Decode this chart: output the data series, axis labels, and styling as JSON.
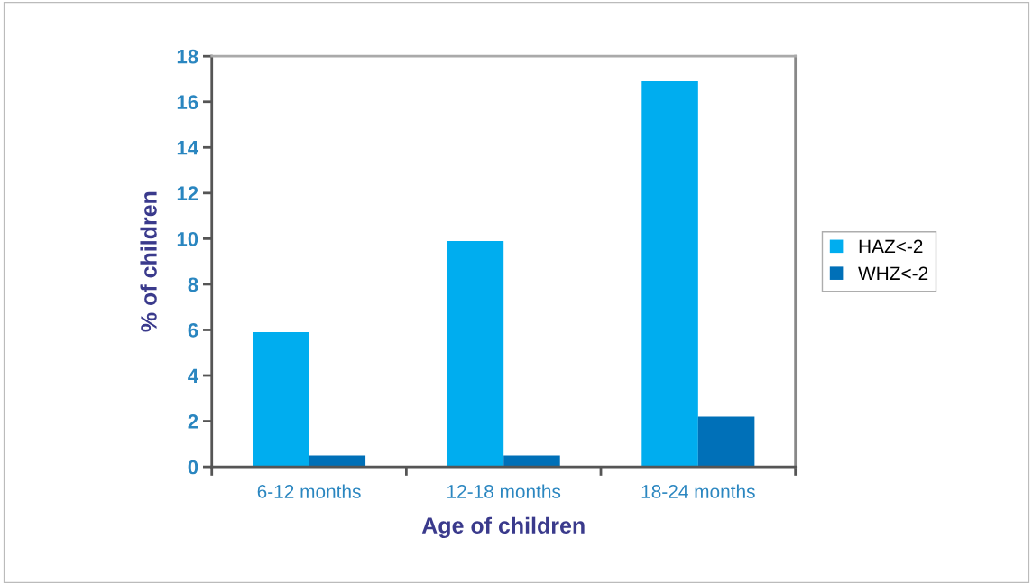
{
  "chart_data": {
    "type": "bar",
    "xlabel": "Age of children",
    "ylabel": "% of children",
    "categories": [
      "6-12 months",
      "12-18 months",
      "18-24 months"
    ],
    "series": [
      {
        "name": "HAZ<-2",
        "color": "#00adef",
        "values": [
          5.9,
          9.9,
          16.9
        ]
      },
      {
        "name": "WHZ<-2",
        "color": "#0070b8",
        "values": [
          0.5,
          0.5,
          2.2
        ]
      }
    ],
    "ylim": [
      0,
      18
    ],
    "yticks": [
      0,
      2,
      4,
      6,
      8,
      10,
      12,
      14,
      16,
      18
    ],
    "grid": false,
    "legend": "right"
  }
}
